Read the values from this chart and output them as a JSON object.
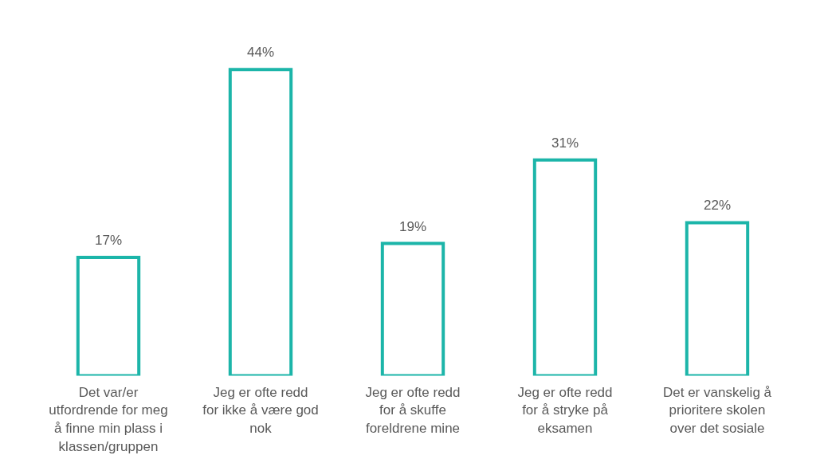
{
  "chart_data": {
    "type": "bar",
    "categories": [
      "Det var/er utfordrende for meg å finne min plass i klassen/gruppen",
      "Jeg er ofte redd for ikke å være god nok",
      "Jeg er ofte redd for å skuffe foreldrene mine",
      "Jeg er ofte redd for å stryke på eksamen",
      "Det er vanskelig å prioritere skolen over det sosiale"
    ],
    "values": [
      17,
      44,
      19,
      31,
      22
    ],
    "value_labels": [
      "17%",
      "44%",
      "19%",
      "31%",
      "22%"
    ],
    "color": "#1cb5a9",
    "grid": false
  }
}
